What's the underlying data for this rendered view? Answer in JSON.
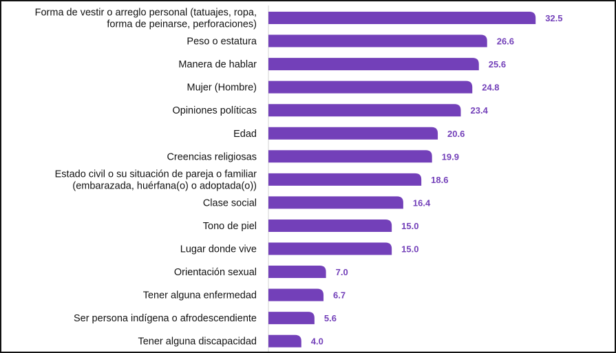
{
  "colors": {
    "bar": "#7340b9",
    "value_label": "#7340b9",
    "axis": "#d0d0d0",
    "text": "#111111"
  },
  "chart_data": {
    "type": "bar",
    "orientation": "horizontal",
    "title": "",
    "xlabel": "",
    "ylabel": "",
    "xlim": [
      0,
      36
    ],
    "grid": false,
    "legend": "none",
    "categories": [
      [
        "Forma de vestir o arreglo personal (tatuajes, ropa,",
        "forma de peinarse, perforaciones)"
      ],
      [
        "Peso o estatura"
      ],
      [
        "Manera de hablar"
      ],
      [
        "Mujer (Hombre)"
      ],
      [
        "Opiniones políticas"
      ],
      [
        "Edad"
      ],
      [
        "Creencias religiosas"
      ],
      [
        "Estado civil o su situación de pareja o familiar",
        "(embarazada, huérfana(o) o adoptada(o))"
      ],
      [
        "Clase social"
      ],
      [
        "Tono de piel"
      ],
      [
        "Lugar donde vive"
      ],
      [
        "Orientación sexual"
      ],
      [
        "Tener alguna enfermedad"
      ],
      [
        "Ser persona indígena o afrodescendiente"
      ],
      [
        "Tener alguna discapacidad"
      ]
    ],
    "values": [
      32.5,
      26.6,
      25.6,
      24.8,
      23.4,
      20.6,
      19.9,
      18.6,
      16.4,
      15.0,
      15.0,
      7.0,
      6.7,
      5.6,
      4.0
    ],
    "value_labels": [
      "32.5",
      "26.6",
      "25.6",
      "24.8",
      "23.4",
      "20.6",
      "19.9",
      "18.6",
      "16.4",
      "15.0",
      "15.0",
      "7.0",
      "6.7",
      "5.6",
      "4.0"
    ]
  }
}
